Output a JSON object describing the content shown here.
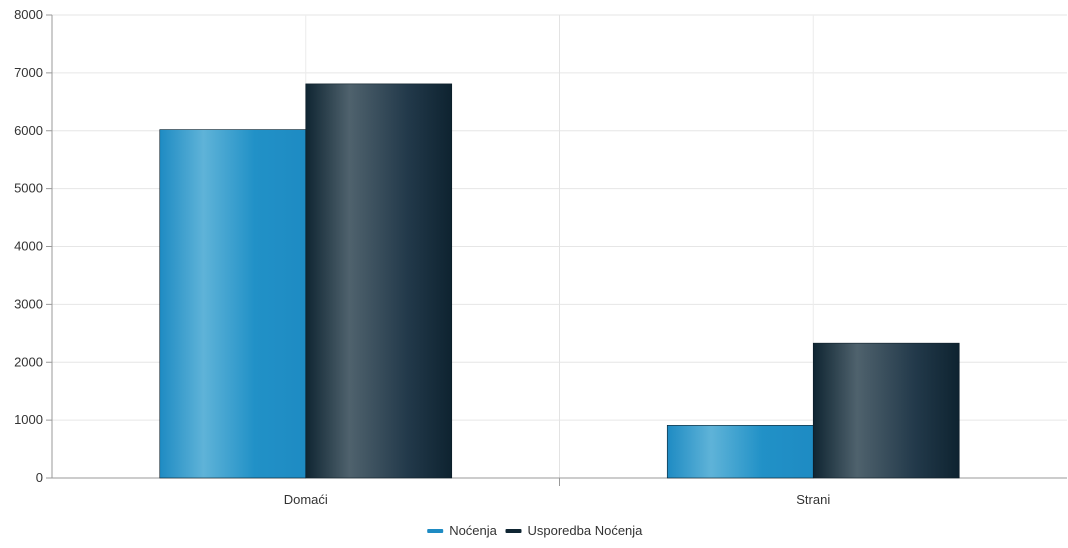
{
  "chart_data": {
    "type": "bar",
    "categories": [
      "Domaći",
      "Strani"
    ],
    "series": [
      {
        "name": "Noćenja",
        "values": [
          6020,
          910
        ],
        "color": "#1e8bc3"
      },
      {
        "name": "Usporedba Noćenja",
        "values": [
          6810,
          2330
        ],
        "color": "#0f2532"
      }
    ],
    "ylim": [
      0,
      8000
    ],
    "yticks": [
      0,
      1000,
      2000,
      3000,
      4000,
      5000,
      6000,
      7000,
      8000
    ],
    "grid": true,
    "legend": "bottom-center"
  }
}
